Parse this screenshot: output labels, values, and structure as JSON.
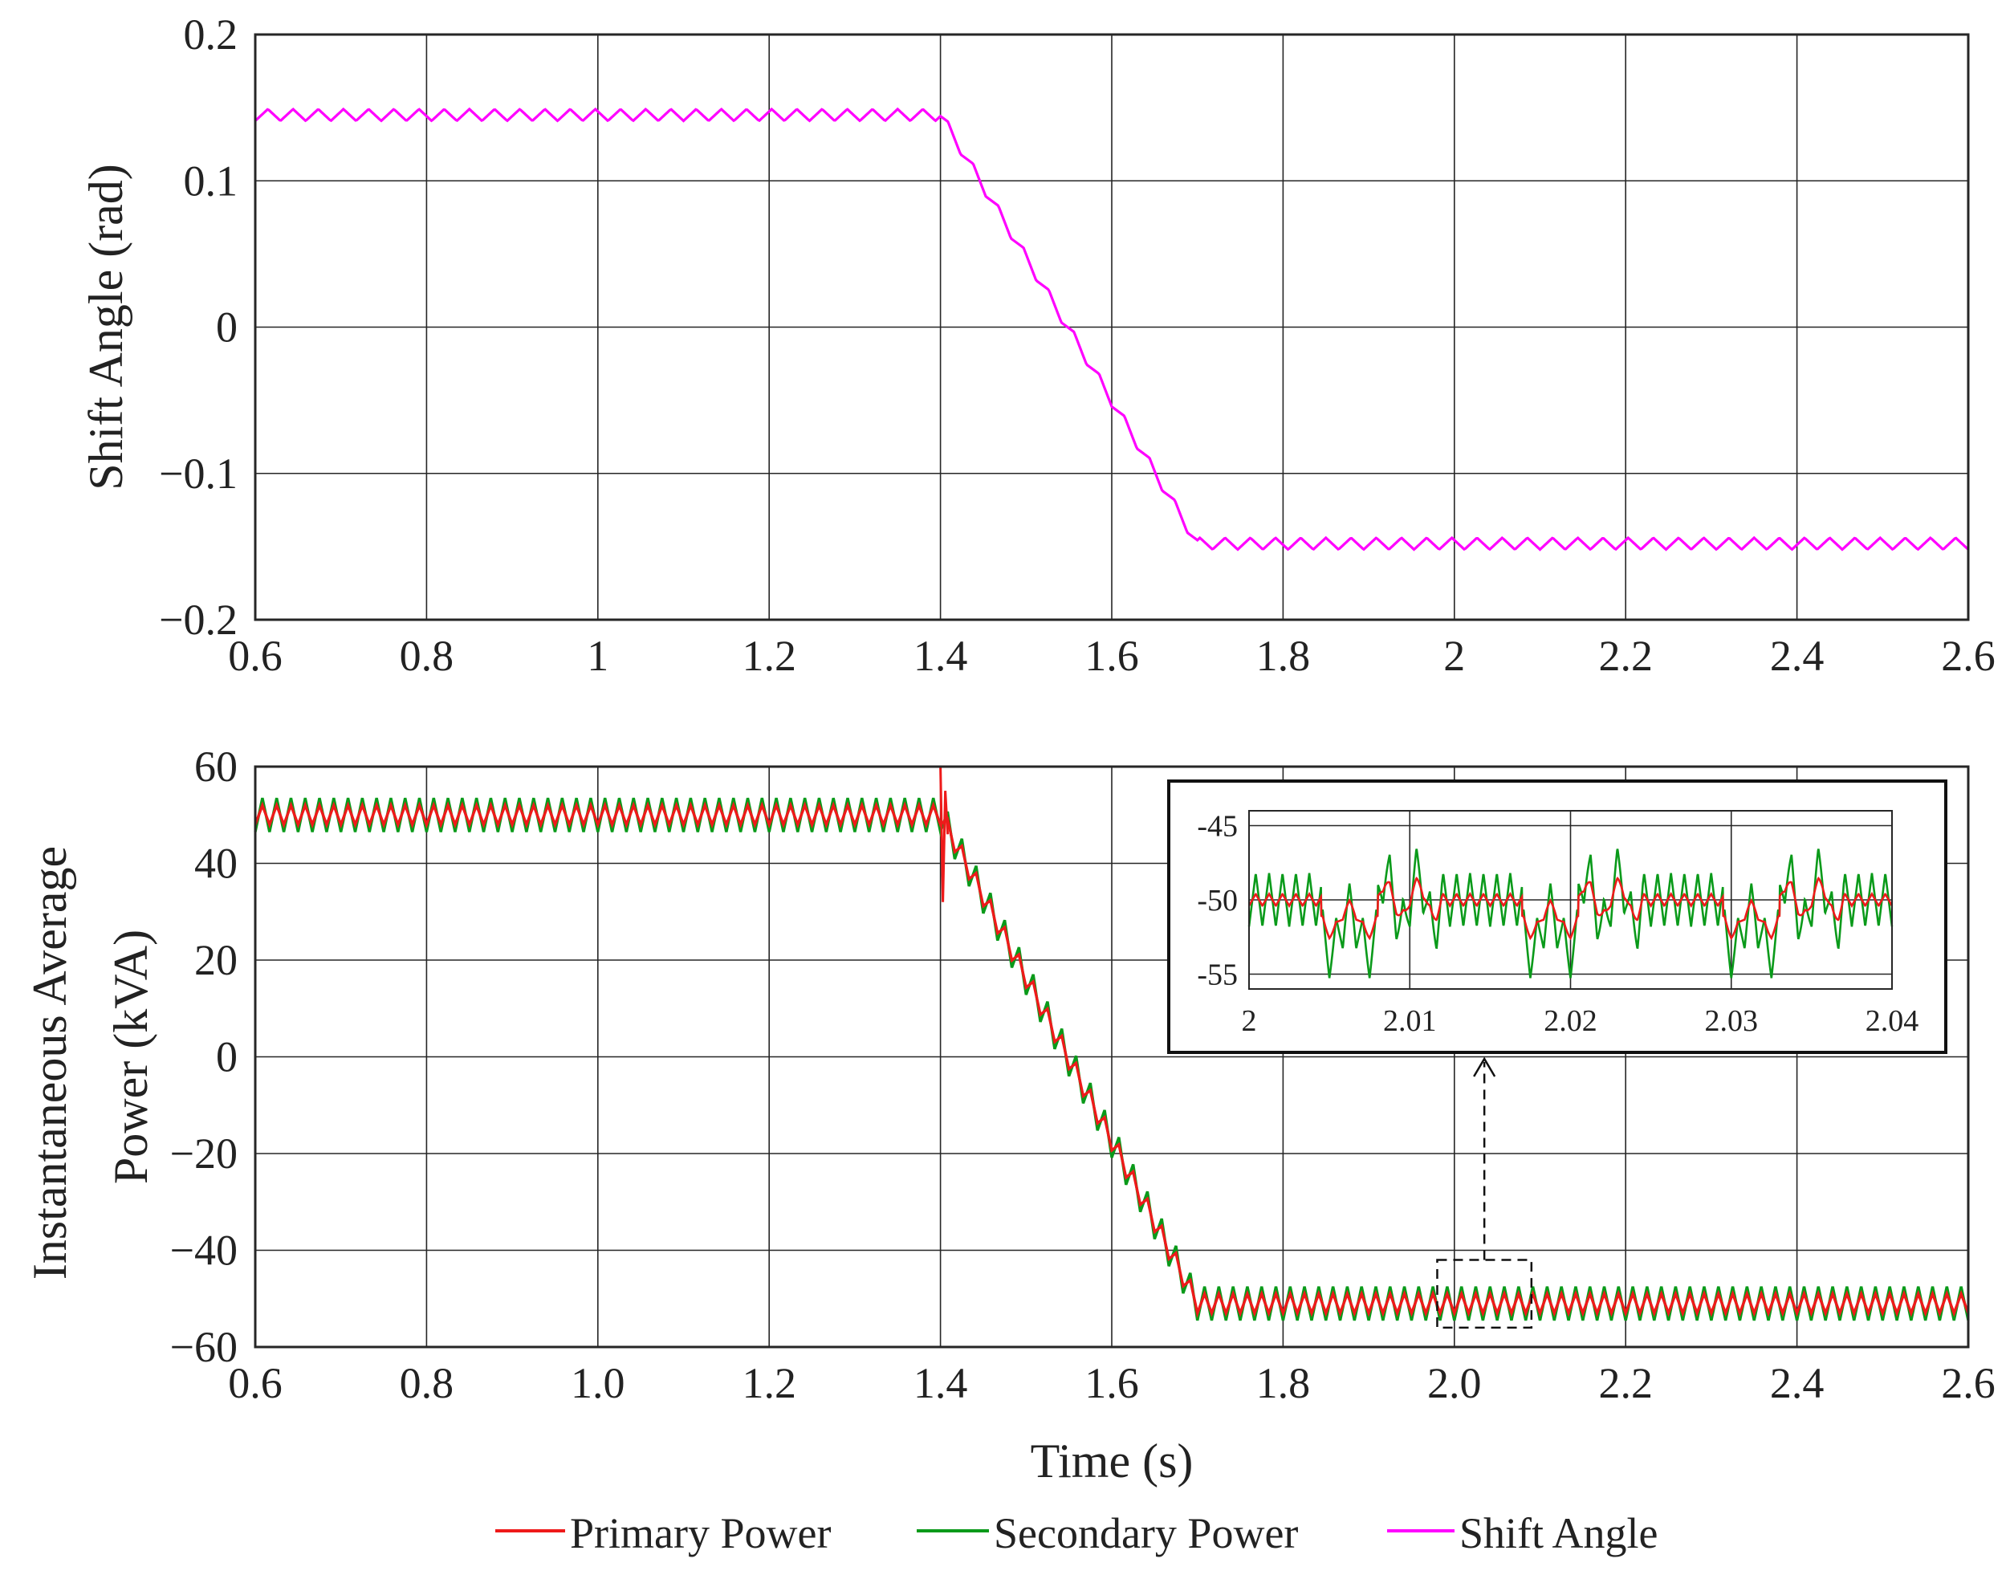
{
  "colors": {
    "primary": "#ee1a1a",
    "secondary": "#0a9a1a",
    "shift": "#ff00ff",
    "grid": "#262626",
    "frame": "#262626"
  },
  "legend": {
    "items": [
      {
        "label": "Primary Power",
        "color": "#ee1a1a"
      },
      {
        "label": "Secondary Power",
        "color": "#0a9a1a"
      },
      {
        "label": "Shift Angle",
        "color": "#ff00ff"
      }
    ]
  },
  "chart_data": [
    {
      "type": "line",
      "id": "shift-angle-chart",
      "title": "",
      "xlabel": "",
      "ylabel": "Shift Angle (rad)",
      "xlim": [
        0.6,
        2.6
      ],
      "ylim": [
        -0.2,
        0.2
      ],
      "grid": true,
      "xticks": [
        0.6,
        0.8,
        1.0,
        1.2,
        1.4,
        1.6,
        1.8,
        2.0,
        2.2,
        2.4,
        2.6
      ],
      "xtick_labels": [
        "0.6",
        "0.8",
        "1",
        "1.2",
        "1.4",
        "1.6",
        "1.8",
        "2",
        "2.2",
        "2.4",
        "2.6"
      ],
      "yticks": [
        -0.2,
        -0.1,
        0,
        0.1,
        0.2
      ],
      "ytick_labels": [
        "−0.2",
        "−0.1",
        "0",
        "0.1",
        "0.2"
      ],
      "series": [
        {
          "name": "Shift Angle",
          "color": "#ff00ff",
          "ripple_amplitude": 0.004,
          "ripple_count_per_unit": 34,
          "x": [
            0.6,
            1.4,
            1.7,
            2.6
          ],
          "y": [
            0.145,
            0.145,
            -0.148,
            -0.148
          ]
        }
      ]
    },
    {
      "type": "line",
      "id": "power-chart",
      "title": "",
      "xlabel": "Time (s)",
      "ylabel": "Instantaneous Average Power (kVA)",
      "ylabel_lines": [
        "Instantaneous Average",
        "Power (kVA)"
      ],
      "xlim": [
        0.6,
        2.6
      ],
      "ylim": [
        -60,
        60
      ],
      "grid": true,
      "xticks": [
        0.6,
        0.8,
        1.0,
        1.2,
        1.4,
        1.6,
        1.8,
        2.0,
        2.2,
        2.4,
        2.6
      ],
      "xtick_labels": [
        "0.6",
        "0.8",
        "1.0",
        "1.2",
        "1.4",
        "1.6",
        "1.8",
        "2.0",
        "2.2",
        "2.4",
        "2.6"
      ],
      "yticks": [
        -60,
        -40,
        -20,
        0,
        20,
        40,
        60
      ],
      "ytick_labels": [
        "−60",
        "−40",
        "−20",
        "0",
        "20",
        "40",
        "60"
      ],
      "zoom_window": {
        "x": [
          1.98,
          2.09
        ],
        "y": [
          -56,
          -42
        ]
      },
      "series": [
        {
          "name": "Secondary Power",
          "color": "#0a9a1a",
          "ripple_amplitude": 3.5,
          "ripple_count_per_unit": 60,
          "x": [
            0.6,
            1.4,
            1.7,
            2.6
          ],
          "y": [
            50,
            50,
            -51,
            -51
          ]
        },
        {
          "name": "Primary Power",
          "color": "#ee1a1a",
          "ripple_amplitude": 2.0,
          "ripple_count_per_unit": 60,
          "spike": {
            "x": 1.4,
            "min": 32,
            "max": 60
          },
          "x": [
            0.6,
            1.4,
            1.7,
            2.6
          ],
          "y": [
            50,
            50,
            -51,
            -51
          ]
        }
      ]
    },
    {
      "type": "line",
      "id": "zoom-inset",
      "title": "",
      "xlabel": "",
      "ylabel": "",
      "xlim": [
        2.0,
        2.04
      ],
      "ylim": [
        -56,
        -44
      ],
      "grid": true,
      "xticks": [
        2.0,
        2.01,
        2.02,
        2.03,
        2.04
      ],
      "xtick_labels": [
        "2",
        "2.01",
        "2.02",
        "2.03",
        "2.04"
      ],
      "yticks": [
        -45,
        -50,
        -55
      ],
      "ytick_labels": [
        "-45",
        "-50",
        "-55"
      ],
      "series": [
        {
          "name": "Secondary Power",
          "color": "#0a9a1a",
          "baseline": -50,
          "ripple_amplitude": 1.8,
          "ripple_count": 48,
          "disturbance_starts": [
            2.0045,
            2.017,
            2.0295
          ],
          "disturbance_depth": 3.5
        },
        {
          "name": "Primary Power",
          "color": "#ee1a1a",
          "baseline": -50,
          "ripple_amplitude": 0.4,
          "ripple_count": 48,
          "disturbance_starts": [
            2.0045,
            2.017,
            2.0295
          ],
          "disturbance_depth": 2.2
        }
      ]
    }
  ]
}
